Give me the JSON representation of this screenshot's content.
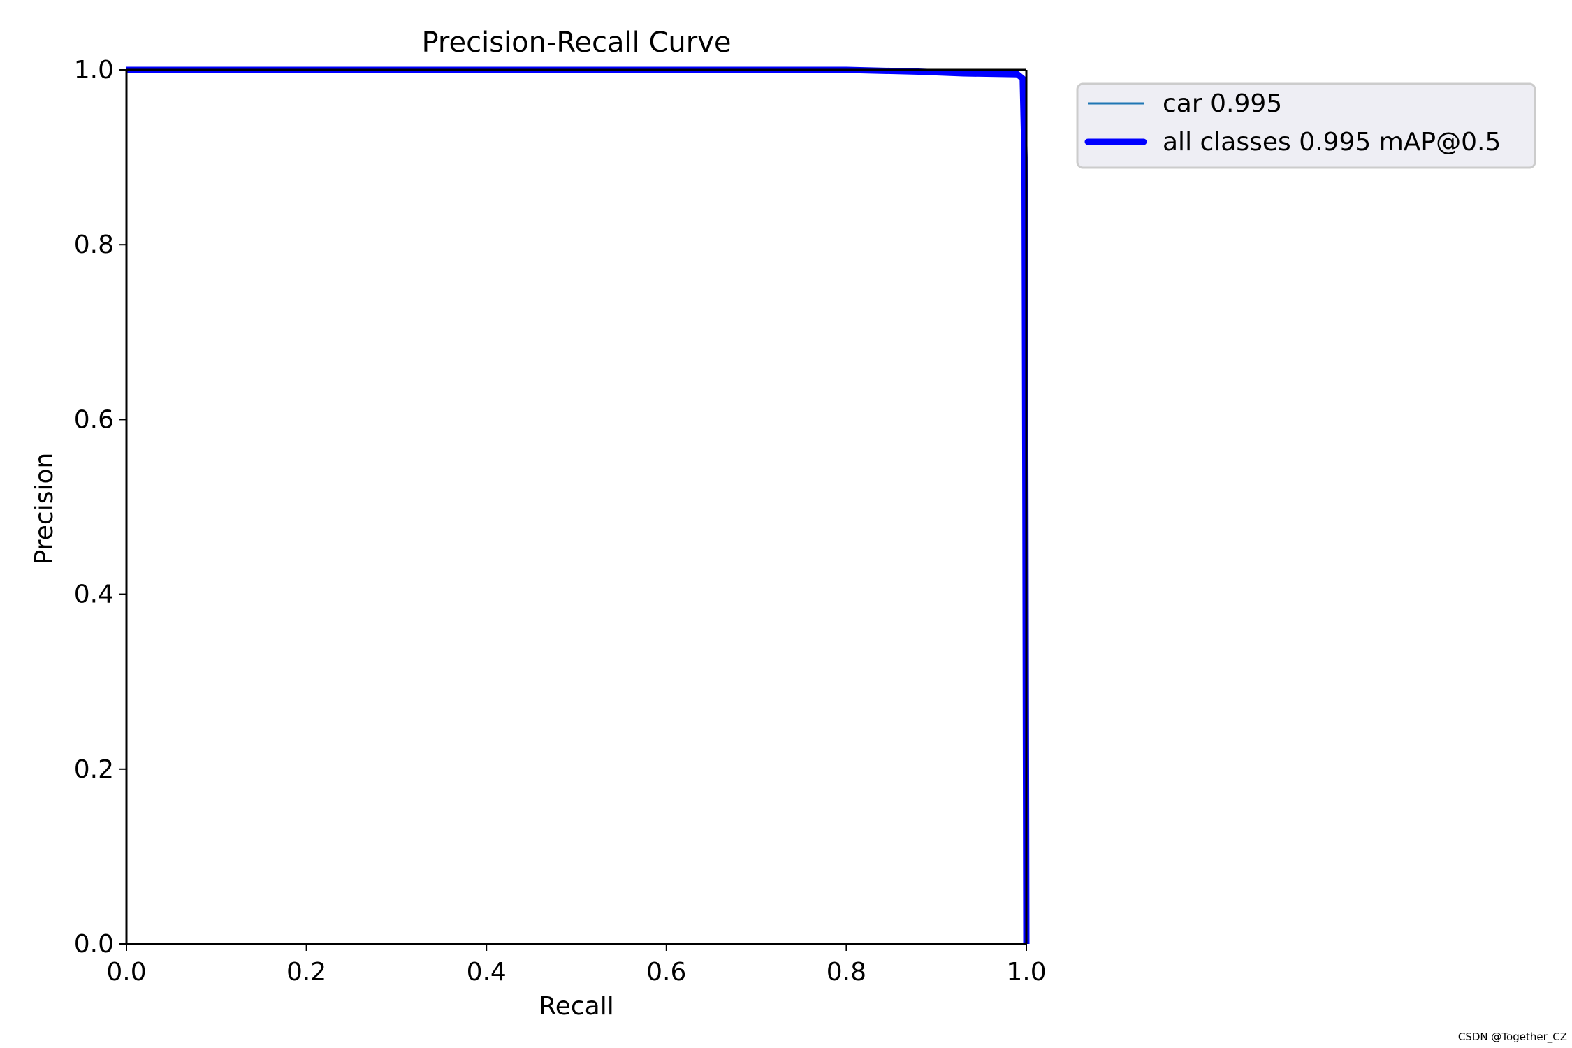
{
  "chart_data": {
    "type": "line",
    "title": "Precision-Recall Curve",
    "xlabel": "Recall",
    "ylabel": "Precision",
    "xlim": [
      0.0,
      1.0
    ],
    "ylim": [
      0.0,
      1.0
    ],
    "xticks": [
      "0.0",
      "0.2",
      "0.4",
      "0.6",
      "0.8",
      "1.0"
    ],
    "yticks": [
      "0.0",
      "0.2",
      "0.4",
      "0.6",
      "0.8",
      "1.0"
    ],
    "grid": false,
    "legend_position": "outside upper right",
    "series": [
      {
        "name": "car 0.995",
        "color": "#1f77b4",
        "x": [
          0.0,
          0.2,
          0.4,
          0.6,
          0.8,
          0.88,
          0.93,
          0.99,
          0.996,
          0.998,
          0.999,
          1.0
        ],
        "y": [
          1.0,
          1.0,
          1.0,
          1.0,
          1.0,
          0.998,
          0.996,
          0.995,
          0.99,
          0.9,
          0.5,
          0.0
        ]
      },
      {
        "name": "all classes 0.995 mAP@0.5",
        "color": "#0000ff",
        "x": [
          0.0,
          0.2,
          0.4,
          0.6,
          0.8,
          0.88,
          0.93,
          0.99,
          0.996,
          0.998,
          0.999,
          1.0
        ],
        "y": [
          1.0,
          1.0,
          1.0,
          1.0,
          1.0,
          0.998,
          0.996,
          0.995,
          0.99,
          0.9,
          0.5,
          0.0
        ]
      }
    ]
  },
  "watermark": "CSDN @Together_CZ"
}
